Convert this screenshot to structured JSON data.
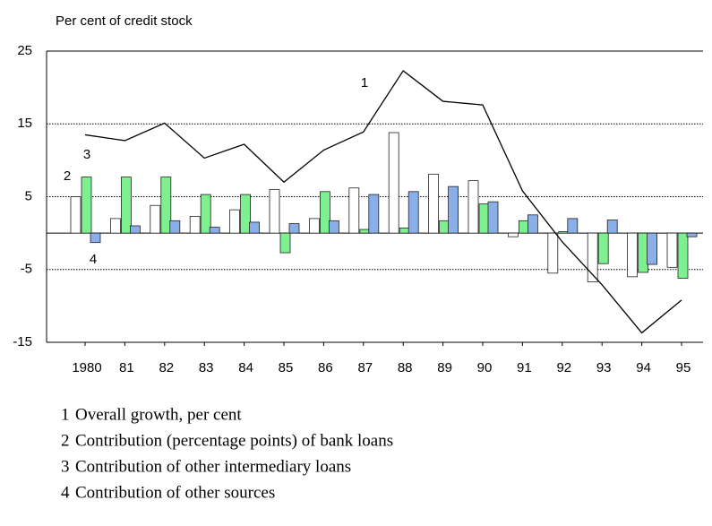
{
  "chart_data": {
    "type": "bar_line",
    "y_axis_label": "Per cent of credit stock",
    "categories": [
      "1980",
      "81",
      "82",
      "83",
      "84",
      "85",
      "86",
      "87",
      "88",
      "89",
      "90",
      "91",
      "92",
      "93",
      "94",
      "95"
    ],
    "ylim": [
      -15,
      25
    ],
    "yticks": [
      25,
      15,
      5,
      -5,
      -15
    ],
    "grid": true,
    "series": [
      {
        "key": "1",
        "name": "Overall growth, per cent",
        "kind": "line",
        "color": "#000000",
        "values": [
          13.5,
          12.7,
          15.1,
          10.3,
          12.2,
          7.0,
          11.4,
          13.9,
          22.3,
          18.1,
          17.6,
          5.8,
          -1.2,
          -7.1,
          -13.7,
          -9.2
        ]
      },
      {
        "key": "2",
        "name": "Contribution (percentage points) of bank loans",
        "kind": "bar",
        "color": "#ffffff",
        "values": [
          5.0,
          2.0,
          3.8,
          2.3,
          3.2,
          6.0,
          2.0,
          6.2,
          13.8,
          8.1,
          7.2,
          -0.5,
          -5.5,
          -6.7,
          -6.0,
          -4.7
        ]
      },
      {
        "key": "3",
        "name": "Contribution of other intermediary loans",
        "kind": "bar",
        "color": "#7ef08f",
        "values": [
          7.7,
          7.7,
          7.7,
          5.3,
          5.3,
          -2.7,
          5.7,
          0.5,
          0.7,
          1.7,
          4.0,
          1.7,
          0.2,
          -4.2,
          -5.4,
          -6.2
        ]
      },
      {
        "key": "4",
        "name": "Contribution of other sources",
        "kind": "bar",
        "color": "#8aaee8",
        "values": [
          -1.3,
          1.0,
          1.7,
          0.8,
          1.5,
          1.3,
          1.7,
          5.3,
          5.7,
          6.4,
          4.3,
          2.5,
          2.0,
          1.8,
          -4.3,
          -0.5
        ]
      }
    ]
  }
}
